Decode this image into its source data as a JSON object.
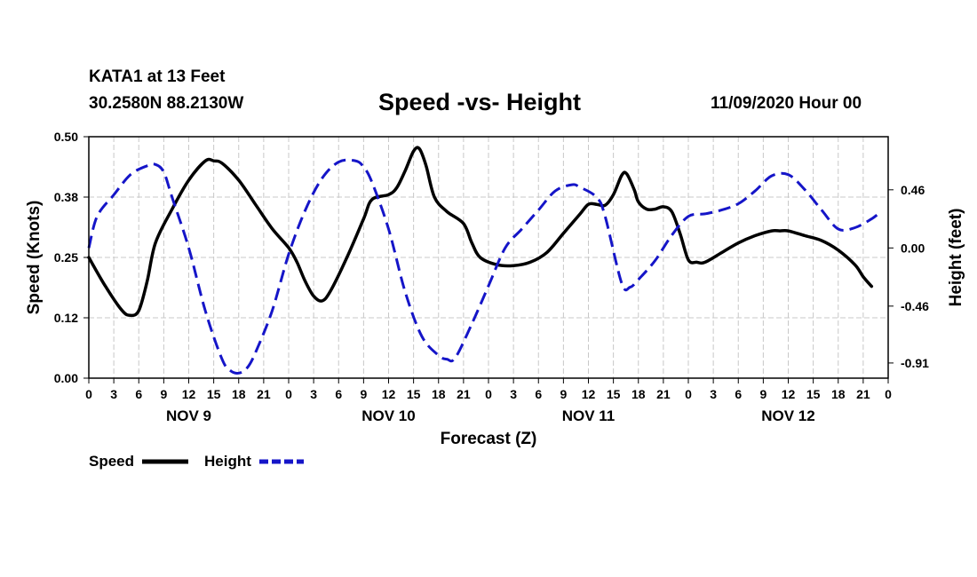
{
  "header": {
    "station": "KATA1 at 13 Feet",
    "coords": "30.2580N 88.2130W",
    "title": "Speed -vs- Height",
    "datetime": "11/09/2020 Hour 00"
  },
  "chart_data": {
    "type": "line",
    "title": "Speed -vs- Height",
    "xlabel": "Forecast (Z)",
    "ylabel_left": "Speed (Knots)",
    "ylabel_right": "Height (feet)",
    "x_range_hours": [
      0,
      96
    ],
    "x_tick_step_hours": 3,
    "x_tick_labels": [
      "0",
      "3",
      "6",
      "9",
      "12",
      "15",
      "18",
      "21",
      "0",
      "3",
      "6",
      "9",
      "12",
      "15",
      "18",
      "21",
      "0",
      "3",
      "6",
      "9",
      "12",
      "15",
      "18",
      "21",
      "0",
      "3",
      "6",
      "9",
      "12",
      "15",
      "18",
      "21",
      "0"
    ],
    "day_labels": [
      {
        "hour": 12,
        "label": "NOV 9"
      },
      {
        "hour": 36,
        "label": "NOV 10"
      },
      {
        "hour": 60,
        "label": "NOV 11"
      },
      {
        "hour": 84,
        "label": "NOV 12"
      }
    ],
    "y_left": {
      "min": 0.0,
      "max": 0.5,
      "ticks": [
        0.0,
        0.125,
        0.25,
        0.375,
        0.5
      ],
      "tick_labels": [
        "0.00",
        "0.12",
        "0.25",
        "0.38",
        "0.50"
      ]
    },
    "y_right": {
      "min": -1.03,
      "max": 0.88,
      "ticks": [
        -0.91,
        -0.46,
        0.0,
        0.46
      ],
      "tick_labels": [
        "-0.91",
        "-0.46",
        "0.00",
        "0.46"
      ]
    },
    "grid": true,
    "legend": [
      {
        "name": "Speed",
        "color": "#000000",
        "style": "solid"
      },
      {
        "name": "Height",
        "color": "#1515c8",
        "style": "dashed"
      }
    ],
    "series": [
      {
        "name": "Speed",
        "axis": "left",
        "color": "#000000",
        "points": [
          [
            0,
            0.25
          ],
          [
            2,
            0.19
          ],
          [
            4,
            0.14
          ],
          [
            5,
            0.13
          ],
          [
            6,
            0.14
          ],
          [
            7,
            0.2
          ],
          [
            8,
            0.28
          ],
          [
            10,
            0.35
          ],
          [
            12,
            0.41
          ],
          [
            14,
            0.45
          ],
          [
            15,
            0.45
          ],
          [
            16,
            0.445
          ],
          [
            18,
            0.41
          ],
          [
            20,
            0.36
          ],
          [
            22,
            0.31
          ],
          [
            24,
            0.27
          ],
          [
            25,
            0.24
          ],
          [
            26,
            0.2
          ],
          [
            27,
            0.17
          ],
          [
            28,
            0.16
          ],
          [
            29,
            0.18
          ],
          [
            31,
            0.25
          ],
          [
            33,
            0.33
          ],
          [
            34,
            0.37
          ],
          [
            36,
            0.38
          ],
          [
            37,
            0.395
          ],
          [
            38,
            0.43
          ],
          [
            39,
            0.47
          ],
          [
            39.7,
            0.475
          ],
          [
            40.5,
            0.44
          ],
          [
            41.5,
            0.375
          ],
          [
            43,
            0.345
          ],
          [
            45,
            0.32
          ],
          [
            46,
            0.28
          ],
          [
            47,
            0.25
          ],
          [
            49,
            0.235
          ],
          [
            51,
            0.233
          ],
          [
            53,
            0.24
          ],
          [
            55,
            0.26
          ],
          [
            57,
            0.3
          ],
          [
            59,
            0.34
          ],
          [
            60,
            0.36
          ],
          [
            61,
            0.36
          ],
          [
            62,
            0.358
          ],
          [
            63,
            0.38
          ],
          [
            64,
            0.42
          ],
          [
            64.6,
            0.423
          ],
          [
            65.5,
            0.39
          ],
          [
            66,
            0.365
          ],
          [
            67,
            0.35
          ],
          [
            68,
            0.35
          ],
          [
            69,
            0.355
          ],
          [
            70,
            0.345
          ],
          [
            71,
            0.3
          ],
          [
            72,
            0.245
          ],
          [
            73,
            0.24
          ],
          [
            74,
            0.24
          ],
          [
            76,
            0.26
          ],
          [
            78,
            0.28
          ],
          [
            80,
            0.295
          ],
          [
            82,
            0.305
          ],
          [
            83,
            0.305
          ],
          [
            84,
            0.305
          ],
          [
            86,
            0.295
          ],
          [
            88,
            0.285
          ],
          [
            90,
            0.265
          ],
          [
            92,
            0.235
          ],
          [
            93,
            0.21
          ],
          [
            94,
            0.19
          ]
        ]
      },
      {
        "name": "Height",
        "axis": "right",
        "color": "#1515c8",
        "points": [
          [
            0,
            0.0
          ],
          [
            1,
            0.25
          ],
          [
            3,
            0.42
          ],
          [
            5,
            0.58
          ],
          [
            7,
            0.65
          ],
          [
            8,
            0.66
          ],
          [
            9,
            0.6
          ],
          [
            10,
            0.4
          ],
          [
            12,
            0.0
          ],
          [
            14,
            -0.5
          ],
          [
            16,
            -0.88
          ],
          [
            17,
            -0.97
          ],
          [
            18,
            -0.99
          ],
          [
            19,
            -0.95
          ],
          [
            20,
            -0.83
          ],
          [
            22,
            -0.5
          ],
          [
            24,
            -0.05
          ],
          [
            26,
            0.3
          ],
          [
            28,
            0.55
          ],
          [
            30,
            0.68
          ],
          [
            32,
            0.69
          ],
          [
            33,
            0.64
          ],
          [
            34,
            0.52
          ],
          [
            36,
            0.15
          ],
          [
            38,
            -0.35
          ],
          [
            40,
            -0.7
          ],
          [
            42,
            -0.85
          ],
          [
            43,
            -0.88
          ],
          [
            44,
            -0.87
          ],
          [
            46,
            -0.6
          ],
          [
            48,
            -0.3
          ],
          [
            50,
            0.0
          ],
          [
            52,
            0.15
          ],
          [
            54,
            0.3
          ],
          [
            56,
            0.45
          ],
          [
            58,
            0.5
          ],
          [
            59,
            0.48
          ],
          [
            61,
            0.4
          ],
          [
            62,
            0.25
          ],
          [
            64,
            -0.28
          ],
          [
            65,
            -0.31
          ],
          [
            66,
            -0.25
          ],
          [
            68,
            -0.1
          ],
          [
            70,
            0.1
          ],
          [
            72,
            0.25
          ],
          [
            74,
            0.27
          ],
          [
            76,
            0.3
          ],
          [
            78,
            0.35
          ],
          [
            80,
            0.45
          ],
          [
            82,
            0.57
          ],
          [
            84,
            0.58
          ],
          [
            86,
            0.46
          ],
          [
            88,
            0.3
          ],
          [
            90,
            0.15
          ],
          [
            92,
            0.16
          ],
          [
            94,
            0.23
          ],
          [
            95,
            0.28
          ]
        ]
      }
    ]
  }
}
